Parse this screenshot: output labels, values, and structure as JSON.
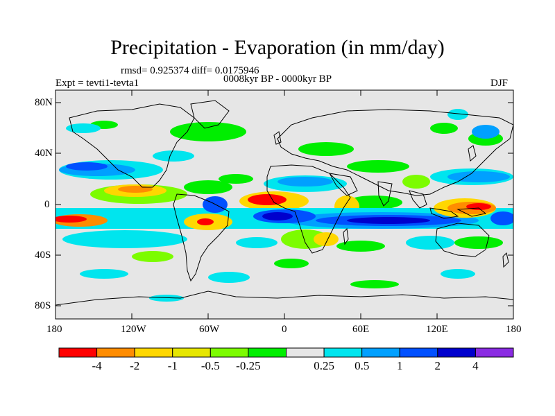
{
  "title": "Precipitation - Evaporation (in mm/day)",
  "stats": "rmsd= 0.925374 diff= 0.0175946",
  "experiment": "Expt = tevti1-tevta1",
  "period": "0008kyr BP - 0000kyr BP",
  "season": "DJF",
  "axes": {
    "lat_ticks": [
      "80N",
      "40N",
      "0",
      "40S",
      "80S"
    ],
    "lon_ticks": [
      "180",
      "120W",
      "60W",
      "0",
      "60E",
      "120E",
      "180"
    ]
  },
  "colorbar": {
    "colors": [
      "#ff0000",
      "#ff8c00",
      "#ffd700",
      "#e6e600",
      "#7cfc00",
      "#00ee00",
      "#e6e6e6",
      "#00e5ee",
      "#00a0ff",
      "#0050ff",
      "#0000cd",
      "#8a2be2"
    ],
    "labels": [
      "-4",
      "-2",
      "-1",
      "-0.5",
      "-0.25",
      "0.25",
      "0.5",
      "1",
      "2",
      "4"
    ]
  },
  "map_colors": {
    "background": "#e6e6e6",
    "coast": "#000000"
  }
}
